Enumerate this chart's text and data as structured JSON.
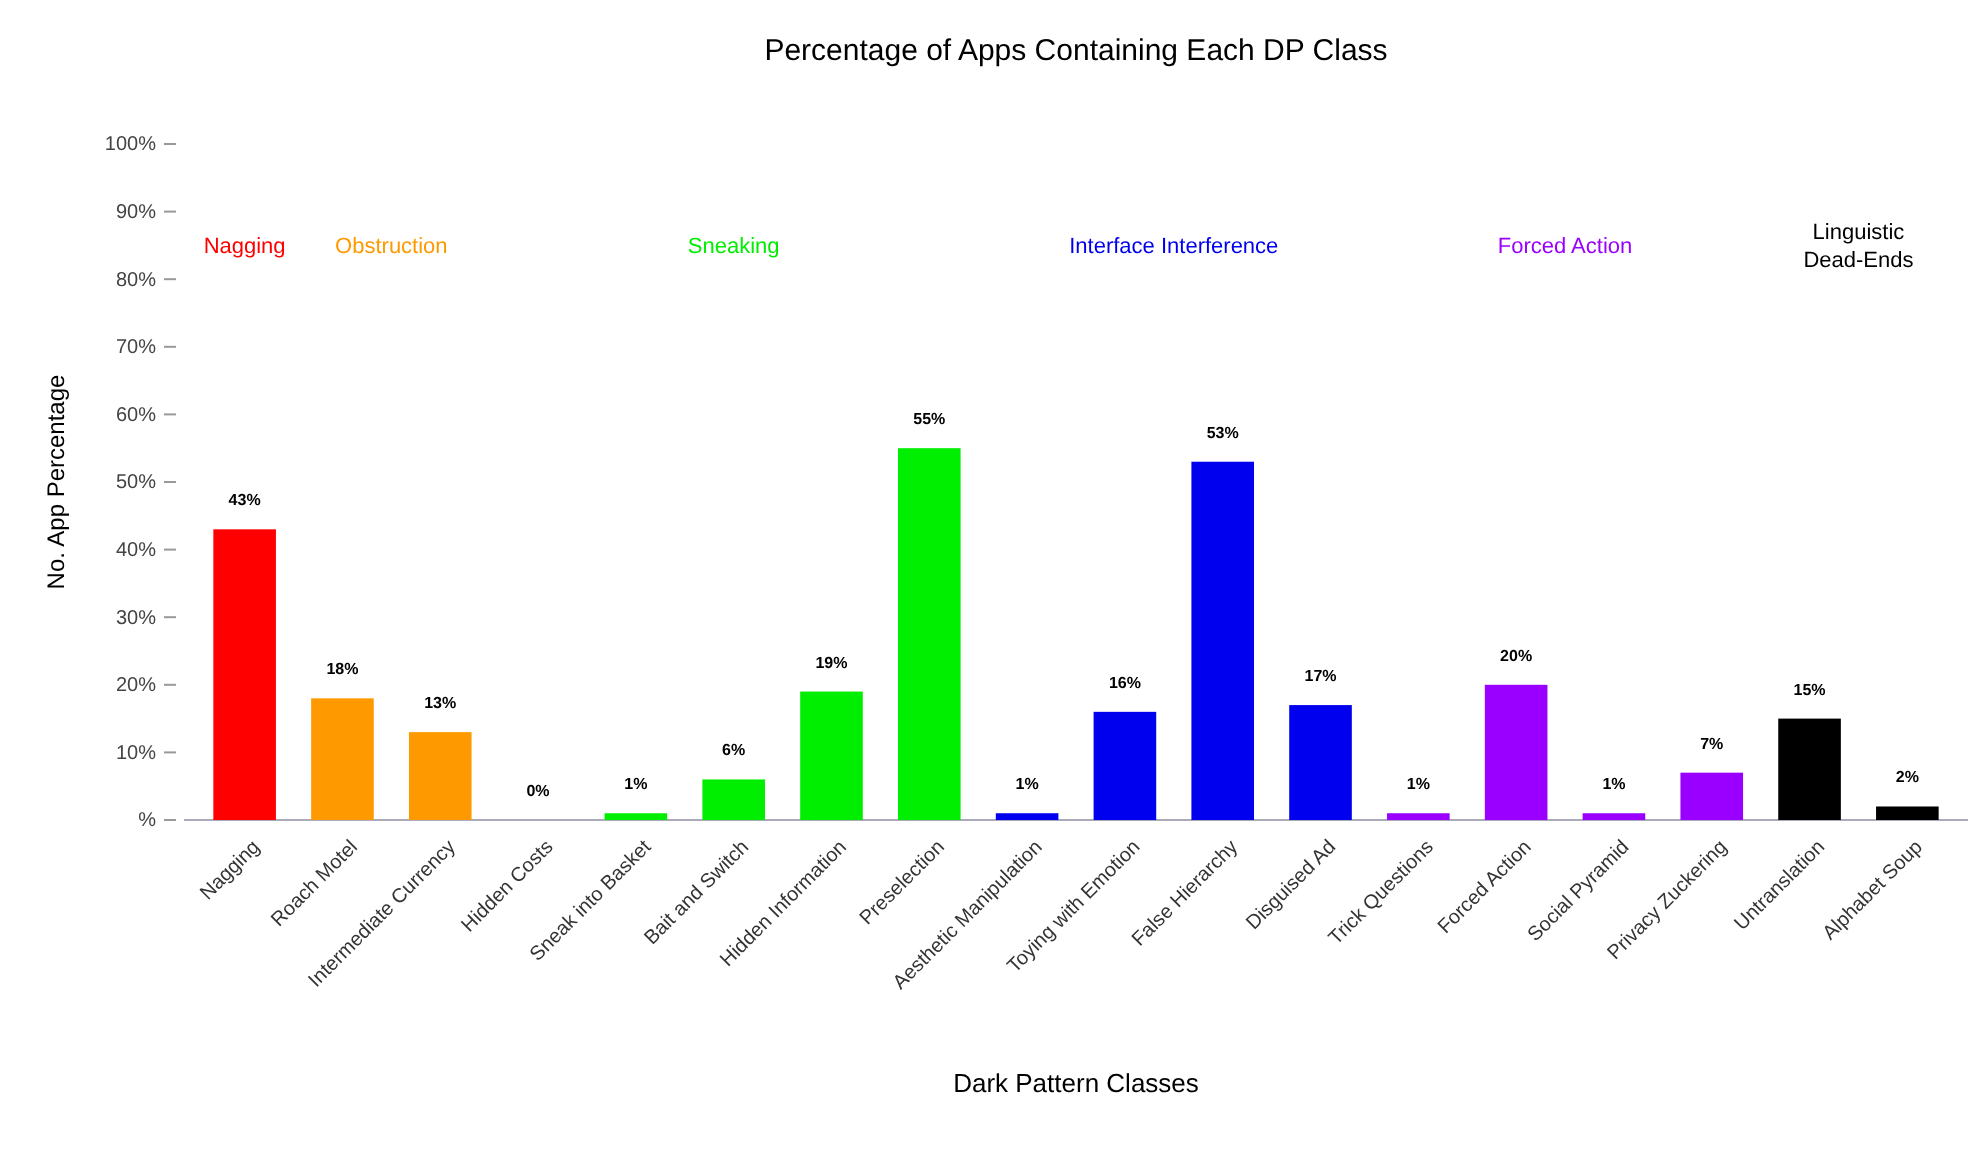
{
  "chart_data": {
    "type": "bar",
    "title": "Percentage of Apps Containing Each DP Class",
    "xlabel": "Dark Pattern Classes",
    "ylabel": "No. App Percentage",
    "categories": [
      "Nagging",
      "Roach Motel",
      "Intermediate Currency",
      "Hidden Costs",
      "Sneak into Basket",
      "Bait and Switch",
      "Hidden Information",
      "Preselection",
      "Aesthetic Manipulation",
      "Toying with Emotion",
      "False Hierarchy",
      "Disguised Ad",
      "Trick Questions",
      "Forced Action",
      "Social Pyramid",
      "Privacy Zuckering",
      "Untranslation",
      "Alphabet Soup"
    ],
    "values": [
      43,
      18,
      13,
      0,
      1,
      6,
      19,
      55,
      1,
      16,
      53,
      17,
      1,
      20,
      1,
      7,
      15,
      2
    ],
    "value_labels": [
      "43%",
      "18%",
      "13%",
      "0%",
      "1%",
      "6%",
      "19%",
      "55%",
      "1%",
      "16%",
      "53%",
      "17%",
      "1%",
      "20%",
      "1%",
      "7%",
      "15%",
      "2%"
    ],
    "colors": [
      "#ff0000",
      "#ff9900",
      "#ff9900",
      "#00ee00",
      "#00ee00",
      "#00ee00",
      "#00ee00",
      "#00ee00",
      "#0000ee",
      "#0000ee",
      "#0000ee",
      "#0000ee",
      "#9900ff",
      "#9900ff",
      "#9900ff",
      "#9900ff",
      "#000000",
      "#000000"
    ],
    "ylim": [
      0,
      100
    ],
    "yticks": [
      {
        "value": 0,
        "label": "%"
      },
      {
        "value": 10,
        "label": "10%"
      },
      {
        "value": 20,
        "label": "20%"
      },
      {
        "value": 30,
        "label": "30%"
      },
      {
        "value": 40,
        "label": "40%"
      },
      {
        "value": 50,
        "label": "50%"
      },
      {
        "value": 60,
        "label": "60%"
      },
      {
        "value": 70,
        "label": "70%"
      },
      {
        "value": 80,
        "label": "80%"
      },
      {
        "value": 90,
        "label": "90%"
      },
      {
        "value": 100,
        "label": "100%"
      }
    ],
    "annotations": [
      "Nagging",
      "Obstruction",
      "Sneaking",
      "Interface Interference",
      "Forced Action",
      "Linguistic\nDead-Ends"
    ],
    "grid": false
  }
}
